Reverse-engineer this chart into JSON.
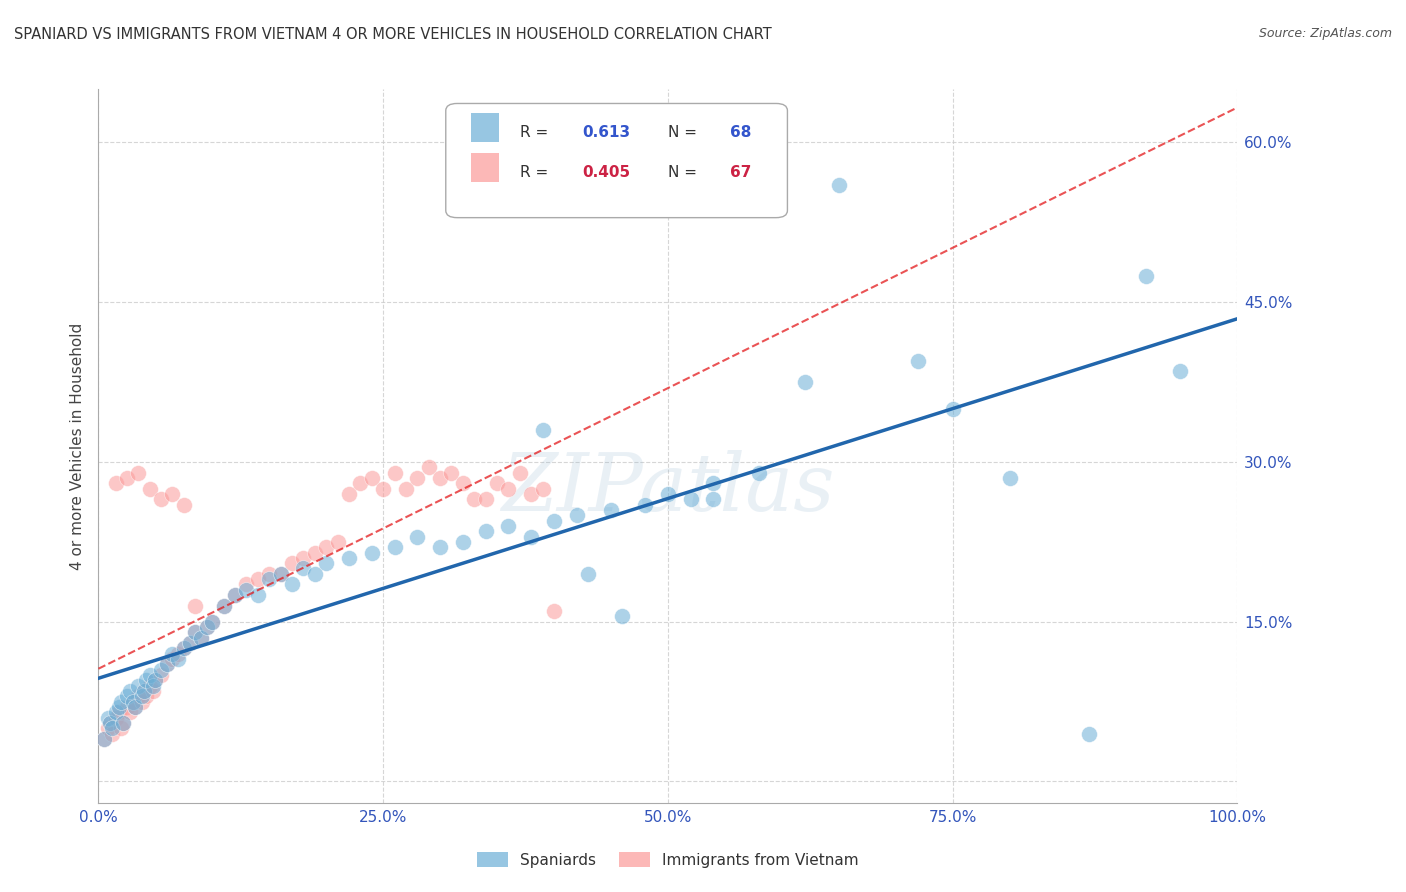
{
  "title": "SPANIARD VS IMMIGRANTS FROM VIETNAM 4 OR MORE VEHICLES IN HOUSEHOLD CORRELATION CHART",
  "source": "Source: ZipAtlas.com",
  "ylabel": "4 or more Vehicles in Household",
  "xmin": 0.0,
  "xmax": 1.0,
  "ymin": -0.02,
  "ymax": 0.65,
  "yticks": [
    0.0,
    0.15,
    0.3,
    0.45,
    0.6
  ],
  "xticks": [
    0.0,
    0.25,
    0.5,
    0.75,
    1.0
  ],
  "xtick_labels": [
    "0.0%",
    "25.0%",
    "50.0%",
    "75.0%",
    "100.0%"
  ],
  "ytick_labels": [
    "",
    "15.0%",
    "30.0%",
    "45.0%",
    "60.0%"
  ],
  "grid_color": "#cccccc",
  "background_color": "#ffffff",
  "spaniards_color": "#6baed6",
  "vietnam_color": "#fb9a99",
  "spaniards_line_color": "#2166ac",
  "vietnam_line_color": "#e31a1c",
  "spaniards_r": "0.613",
  "spaniards_n": "68",
  "vietnam_r": "0.405",
  "vietnam_n": "67",
  "spaniards_x": [
    0.005,
    0.008,
    0.01,
    0.012,
    0.015,
    0.018,
    0.02,
    0.022,
    0.025,
    0.028,
    0.03,
    0.032,
    0.035,
    0.038,
    0.04,
    0.042,
    0.045,
    0.048,
    0.05,
    0.055,
    0.06,
    0.065,
    0.07,
    0.075,
    0.08,
    0.085,
    0.09,
    0.095,
    0.1,
    0.11,
    0.12,
    0.13,
    0.14,
    0.15,
    0.16,
    0.17,
    0.18,
    0.19,
    0.2,
    0.22,
    0.24,
    0.26,
    0.28,
    0.3,
    0.32,
    0.34,
    0.36,
    0.38,
    0.4,
    0.42,
    0.45,
    0.48,
    0.5,
    0.52,
    0.54,
    0.58,
    0.62,
    0.65,
    0.72,
    0.75,
    0.8,
    0.87,
    0.92,
    0.95,
    0.54,
    0.43,
    0.39,
    0.46
  ],
  "spaniards_y": [
    0.04,
    0.06,
    0.055,
    0.05,
    0.065,
    0.07,
    0.075,
    0.055,
    0.08,
    0.085,
    0.075,
    0.07,
    0.09,
    0.08,
    0.085,
    0.095,
    0.1,
    0.09,
    0.095,
    0.105,
    0.11,
    0.12,
    0.115,
    0.125,
    0.13,
    0.14,
    0.135,
    0.145,
    0.15,
    0.165,
    0.175,
    0.18,
    0.175,
    0.19,
    0.195,
    0.185,
    0.2,
    0.195,
    0.205,
    0.21,
    0.215,
    0.22,
    0.23,
    0.22,
    0.225,
    0.235,
    0.24,
    0.23,
    0.245,
    0.25,
    0.255,
    0.26,
    0.27,
    0.265,
    0.28,
    0.29,
    0.375,
    0.56,
    0.395,
    0.35,
    0.285,
    0.045,
    0.475,
    0.385,
    0.265,
    0.195,
    0.33,
    0.155
  ],
  "vietnam_x": [
    0.005,
    0.008,
    0.01,
    0.012,
    0.015,
    0.018,
    0.02,
    0.022,
    0.025,
    0.028,
    0.03,
    0.032,
    0.035,
    0.038,
    0.04,
    0.042,
    0.045,
    0.048,
    0.05,
    0.055,
    0.06,
    0.065,
    0.07,
    0.075,
    0.08,
    0.085,
    0.09,
    0.095,
    0.1,
    0.11,
    0.12,
    0.13,
    0.14,
    0.15,
    0.16,
    0.17,
    0.18,
    0.19,
    0.2,
    0.21,
    0.22,
    0.23,
    0.24,
    0.25,
    0.26,
    0.27,
    0.28,
    0.29,
    0.3,
    0.31,
    0.32,
    0.33,
    0.34,
    0.35,
    0.36,
    0.37,
    0.38,
    0.39,
    0.4,
    0.015,
    0.025,
    0.035,
    0.045,
    0.055,
    0.065,
    0.075,
    0.085
  ],
  "vietnam_y": [
    0.04,
    0.05,
    0.055,
    0.045,
    0.06,
    0.065,
    0.05,
    0.055,
    0.07,
    0.065,
    0.075,
    0.07,
    0.08,
    0.075,
    0.085,
    0.08,
    0.09,
    0.085,
    0.095,
    0.1,
    0.11,
    0.115,
    0.12,
    0.125,
    0.13,
    0.14,
    0.135,
    0.145,
    0.15,
    0.165,
    0.175,
    0.185,
    0.19,
    0.195,
    0.195,
    0.205,
    0.21,
    0.215,
    0.22,
    0.225,
    0.27,
    0.28,
    0.285,
    0.275,
    0.29,
    0.275,
    0.285,
    0.295,
    0.285,
    0.29,
    0.28,
    0.265,
    0.265,
    0.28,
    0.275,
    0.29,
    0.27,
    0.275,
    0.16,
    0.28,
    0.285,
    0.29,
    0.275,
    0.265,
    0.27,
    0.26,
    0.165
  ]
}
